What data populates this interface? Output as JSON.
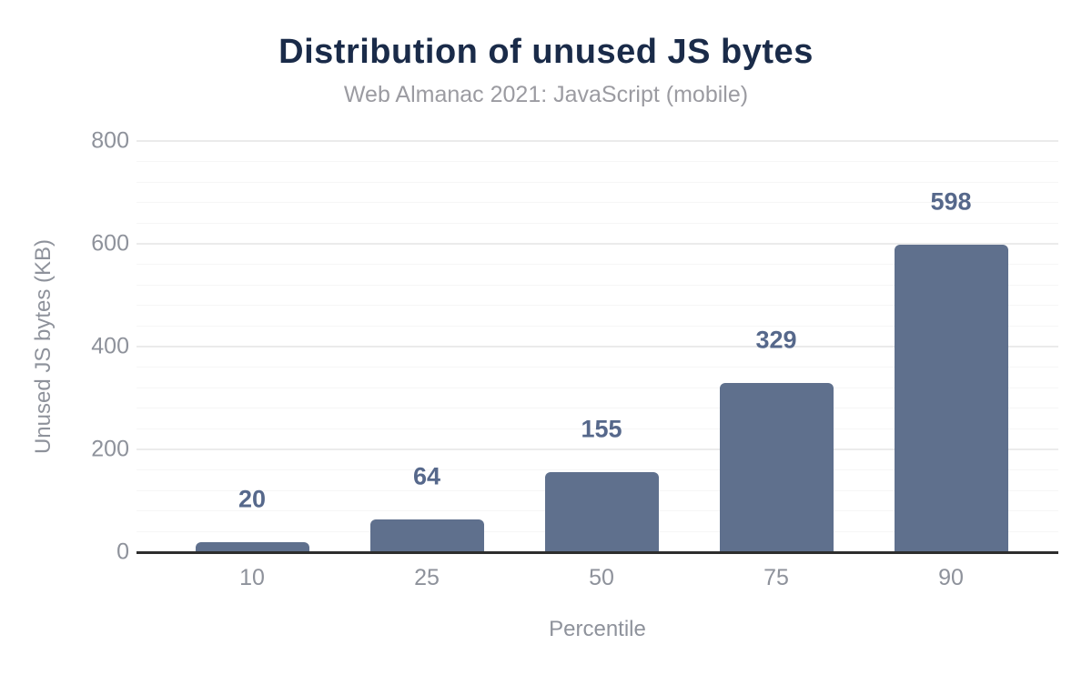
{
  "chart_data": {
    "type": "bar",
    "title": "Distribution of unused JS bytes",
    "subtitle": "Web Almanac 2021: JavaScript (mobile)",
    "categories": [
      "10",
      "25",
      "50",
      "75",
      "90"
    ],
    "values": [
      20,
      64,
      155,
      329,
      598
    ],
    "value_labels": [
      "20",
      "64",
      "155",
      "329",
      "598"
    ],
    "xlabel": "Percentile",
    "ylabel": "Unused JS bytes (KB)",
    "ylim": [
      0,
      800
    ],
    "yticks": [
      0,
      200,
      400,
      600,
      800
    ],
    "ytick_labels": [
      "0",
      "200",
      "400",
      "600",
      "800"
    ],
    "minor_grid_step": 40,
    "grid": true,
    "legend_position": "none",
    "colors": {
      "bar": "#5f708d",
      "value_label": "#56688b",
      "title": "#1a2b49",
      "subtitle": "#9b9ba1",
      "axis_text": "#8e929b",
      "axis_line": "#2d2d2d",
      "major_grid": "#ebebeb",
      "minor_grid": "#f6f6f6",
      "background": "#ffffff"
    }
  }
}
